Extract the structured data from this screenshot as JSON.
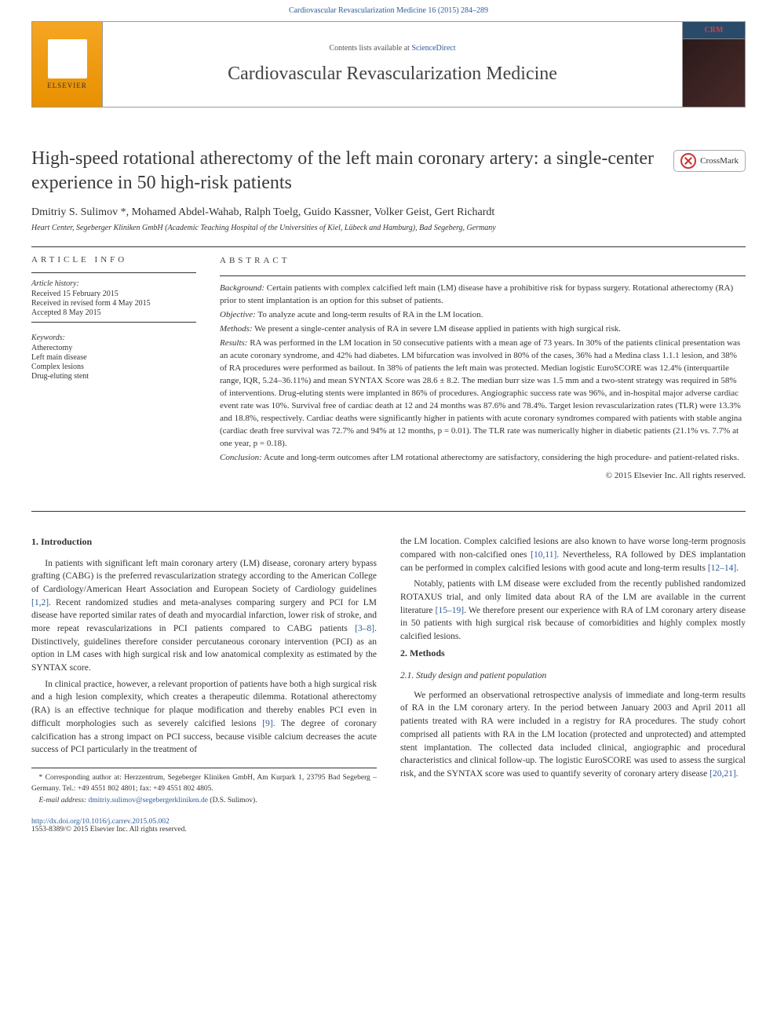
{
  "top_journal_ref": "Cardiovascular Revascularization Medicine 16 (2015) 284–289",
  "header": {
    "contents_prefix": "Contents lists available at ",
    "contents_link": "ScienceDirect",
    "journal_name": "Cardiovascular Revascularization Medicine",
    "elsevier": "ELSEVIER",
    "cover_badge": "CRM"
  },
  "crossmark_label": "CrossMark",
  "article": {
    "title": "High-speed rotational atherectomy of the left main coronary artery: a single-center experience in 50 high-risk patients",
    "authors": "Dmitriy S. Sulimov *, Mohamed Abdel-Wahab, Ralph Toelg, Guido Kassner, Volker Geist, Gert Richardt",
    "affiliation": "Heart Center, Segeberger Kliniken GmbH (Academic Teaching Hospital of the Universities of Kiel, Lübeck and Hamburg), Bad Segeberg, Germany"
  },
  "labels": {
    "article_info": "article info",
    "abstract": "abstract",
    "history": "Article history:",
    "keywords": "Keywords:"
  },
  "history": {
    "received": "Received 15 February 2015",
    "revised": "Received in revised form 4 May 2015",
    "accepted": "Accepted 8 May 2015"
  },
  "keywords": [
    "Atherectomy",
    "Left main disease",
    "Complex lesions",
    "Drug-eluting stent"
  ],
  "abstract": {
    "background_label": "Background:",
    "background": " Certain patients with complex calcified left main (LM) disease have a prohibitive risk for bypass surgery. Rotational atherectomy (RA) prior to stent implantation is an option for this subset of patients.",
    "objective_label": "Objective:",
    "objective": " To analyze acute and long-term results of RA in the LM location.",
    "methods_label": "Methods:",
    "methods": " We present a single-center analysis of RA in severe LM disease applied in patients with high surgical risk.",
    "results_label": "Results:",
    "results": " RA was performed in the LM location in 50 consecutive patients with a mean age of 73 years. In 30% of the patients clinical presentation was an acute coronary syndrome, and 42% had diabetes. LM bifurcation was involved in 80% of the cases, 36% had a Medina class 1.1.1 lesion, and 38% of RA procedures were performed as bailout. In 38% of patients the left main was protected. Median logistic EuroSCORE was 12.4% (interquartile range, IQR, 5.24–36.11%) and mean SYNTAX Score was 28.6 ± 8.2. The median burr size was 1.5 mm and a two-stent strategy was required in 58% of interventions. Drug-eluting stents were implanted in 86% of procedures. Angiographic success rate was 96%, and in-hospital major adverse cardiac event rate was 10%. Survival free of cardiac death at 12 and 24 months was 87.6% and 78.4%. Target lesion revascularization rates (TLR) were 13.3% and 18.8%, respectively. Cardiac deaths were significantly higher in patients with acute coronary syndromes compared with patients with stable angina (cardiac death free survival was 72.7% and 94% at 12 months, p = 0.01). The TLR rate was numerically higher in diabetic patients (21.1% vs. 7.7% at one year, p = 0.18).",
    "conclusion_label": "Conclusion:",
    "conclusion": " Acute and long-term outcomes after LM rotational atherectomy are satisfactory, considering the high procedure- and patient-related risks.",
    "copyright": "© 2015 Elsevier Inc. All rights reserved."
  },
  "body": {
    "intro_h": "1. Introduction",
    "intro_p1a": "In patients with significant left main coronary artery (LM) disease, coronary artery bypass grafting (CABG) is the preferred revascularization strategy according to the American College of Cardiology/American Heart Association and European Society of Cardiology guidelines ",
    "intro_ref1": "[1,2]",
    "intro_p1b": ". Recent randomized studies and meta-analyses comparing surgery and PCI for LM disease have reported similar rates of death and myocardial infarction, lower risk of stroke, and more repeat revascularizations in PCI patients compared to CABG patients ",
    "intro_ref2": "[3–8]",
    "intro_p1c": ". Distinctively, guidelines therefore consider percutaneous coronary intervention (PCI) as an option in LM cases with high surgical risk and low anatomical complexity as estimated by the SYNTAX score.",
    "intro_p2a": "In clinical practice, however, a relevant proportion of patients have both a high surgical risk and a high lesion complexity, which creates a therapeutic dilemma. Rotational atherectomy (RA) is an effective technique for plaque modification and thereby enables PCI even in difficult morphologies such as severely calcified lesions ",
    "intro_ref3": "[9]",
    "intro_p2b": ". The degree of coronary calcification has a strong impact on PCI success, because visible calcium decreases the acute success of PCI particularly in the treatment of",
    "col2_p1a": "the LM location. Complex calcified lesions are also known to have worse long-term prognosis compared with non-calcified ones ",
    "col2_ref1": "[10,11]",
    "col2_p1b": ". Nevertheless, RA followed by DES implantation can be performed in complex calcified lesions with good acute and long-term results ",
    "col2_ref2": "[12–14]",
    "col2_p1c": ".",
    "col2_p2a": "Notably, patients with LM disease were excluded from the recently published randomized ROTAXUS trial, and only limited data about RA of the LM are available in the current literature ",
    "col2_ref3": "[15–19]",
    "col2_p2b": ". We therefore present our experience with RA of LM coronary artery disease in 50 patients with high surgical risk because of comorbidities and highly complex mostly calcified lesions.",
    "methods_h": "2. Methods",
    "methods_sub_h": "2.1. Study design and patient population",
    "methods_p1a": "We performed an observational retrospective analysis of immediate and long-term results of RA in the LM coronary artery. In the period between January 2003 and April 2011 all patients treated with RA were included in a registry for RA procedures. The study cohort comprised all patients with RA in the LM location (protected and unprotected) and attempted stent implantation. The collected data included clinical, angiographic and procedural characteristics and clinical follow-up. The logistic EuroSCORE was used to assess the surgical risk, and the SYNTAX score was used to quantify severity of coronary artery disease ",
    "methods_ref1": "[20,21]",
    "methods_p1b": "."
  },
  "footnotes": {
    "corr": "* Corresponding author at: Herzzentrum, Segeberger Kliniken GmbH, Am Kurpark 1, 23795 Bad Segeberg – Germany. Tel.: +49 4551 802 4801; fax: +49 4551 802 4805.",
    "email_label": "E-mail address: ",
    "email": "dmitriy.sulimov@segebergerkliniken.de",
    "email_who": " (D.S. Sulimov)."
  },
  "bottom": {
    "doi": "http://dx.doi.org/10.1016/j.carrev.2015.05.002",
    "issn_line": "1553-8389/© 2015 Elsevier Inc. All rights reserved."
  },
  "colors": {
    "link": "#2e5c9a",
    "elsevier_bg": "#e89000",
    "text": "#333333",
    "rule": "#333333"
  }
}
